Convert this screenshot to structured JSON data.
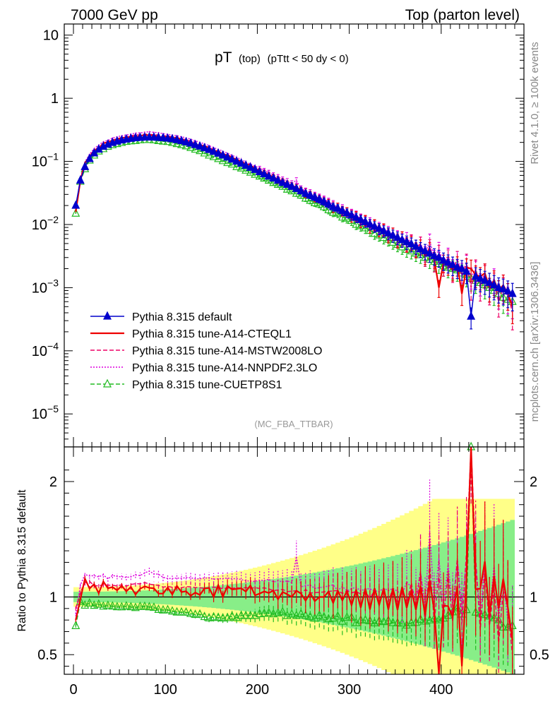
{
  "header": {
    "left": "7000 GeV pp",
    "right": "Top (parton level)"
  },
  "side_labels": {
    "rivet": "Rivet 4.1.0, ≥ 100k events",
    "mcplots": "mcplots.cern.ch [arXiv:1306.3436]"
  },
  "chart_data": {
    "type": "line",
    "title_main": "pT",
    "title_sub1": "(top)",
    "title_sub2": "(pTtt < 50 dy < 0)",
    "watermark": "(MC_FBA_TTBAR)",
    "xlabel": "",
    "xlim": [
      -10,
      490
    ],
    "x_ticks": [
      0,
      100,
      200,
      300,
      400
    ],
    "x_tick_labels": [
      "0",
      "100",
      "200",
      "300",
      "400"
    ],
    "main_panel": {
      "yscale": "log",
      "ylim": [
        3e-06,
        15
      ],
      "y_ticks": [
        {
          "value": 10,
          "base": "10",
          "exp": ""
        },
        {
          "value": 1,
          "base": "1",
          "exp": ""
        },
        {
          "value": 0.1,
          "base": "10",
          "exp": "−1"
        },
        {
          "value": 0.01,
          "base": "10",
          "exp": "−2"
        },
        {
          "value": 0.001,
          "base": "10",
          "exp": "−3"
        },
        {
          "value": 0.0001,
          "base": "10",
          "exp": "−4"
        },
        {
          "value": 1e-05,
          "base": "10",
          "exp": "−5"
        }
      ]
    },
    "ratio_panel": {
      "ylabel": "Ratio to Pythia 8.315 default",
      "ylim": [
        0.33,
        2.3
      ],
      "y_ticks": [
        0.5,
        1,
        2
      ],
      "y_tick_labels": [
        "0.5",
        "1",
        "2"
      ]
    },
    "x": [
      2.5,
      7.5,
      12.5,
      17.5,
      22.5,
      27.5,
      32.5,
      37.5,
      42.5,
      47.5,
      52.5,
      57.5,
      62.5,
      67.5,
      72.5,
      77.5,
      82.5,
      87.5,
      92.5,
      97.5,
      102.5,
      107.5,
      112.5,
      117.5,
      122.5,
      127.5,
      132.5,
      137.5,
      142.5,
      147.5,
      152.5,
      157.5,
      162.5,
      167.5,
      172.5,
      177.5,
      182.5,
      187.5,
      192.5,
      197.5,
      202.5,
      207.5,
      212.5,
      217.5,
      222.5,
      227.5,
      232.5,
      237.5,
      242.5,
      247.5,
      252.5,
      257.5,
      262.5,
      267.5,
      272.5,
      277.5,
      282.5,
      287.5,
      292.5,
      297.5,
      302.5,
      307.5,
      312.5,
      317.5,
      322.5,
      327.5,
      332.5,
      337.5,
      342.5,
      347.5,
      352.5,
      357.5,
      362.5,
      367.5,
      372.5,
      377.5,
      382.5,
      387.5,
      392.5,
      397.5,
      402.5,
      407.5,
      412.5,
      417.5,
      422.5,
      427.5,
      432.5,
      437.5,
      442.5,
      447.5,
      452.5,
      457.5,
      462.5,
      467.5,
      472.5,
      477.5
    ],
    "series": [
      {
        "name": "Pythia 8.315 default",
        "color": "#0000cc",
        "style": "solid",
        "marker": "triangle-filled",
        "values": [
          0.02,
          0.05,
          0.082,
          0.11,
          0.135,
          0.155,
          0.172,
          0.186,
          0.198,
          0.208,
          0.217,
          0.224,
          0.23,
          0.235,
          0.238,
          0.24,
          0.241,
          0.24,
          0.238,
          0.235,
          0.231,
          0.226,
          0.219,
          0.211,
          0.202,
          0.193,
          0.183,
          0.173,
          0.163,
          0.153,
          0.143,
          0.134,
          0.125,
          0.116,
          0.108,
          0.1,
          0.093,
          0.086,
          0.08,
          0.074,
          0.068,
          0.063,
          0.058,
          0.054,
          0.05,
          0.046,
          0.043,
          0.04,
          0.037,
          0.034,
          0.031,
          0.029,
          0.027,
          0.025,
          0.023,
          0.021,
          0.019,
          0.018,
          0.0165,
          0.0152,
          0.014,
          0.0129,
          0.0119,
          0.011,
          0.0101,
          0.0093,
          0.0086,
          0.0079,
          0.0073,
          0.0067,
          0.0062,
          0.0057,
          0.0053,
          0.0049,
          0.0045,
          0.0041,
          0.0038,
          0.0035,
          0.0032,
          0.003,
          0.0027,
          0.0025,
          0.0023,
          0.0021,
          0.002,
          0.0018,
          0.00035,
          0.0015,
          0.0014,
          0.0013,
          0.0012,
          0.0011,
          0.001,
          0.00095,
          0.00088,
          0.0008
        ]
      },
      {
        "name": "Pythia 8.315 tune-A14-CTEQL1",
        "color": "#ee0000",
        "style": "solid",
        "marker": "none",
        "values": [
          0.016,
          0.049,
          0.095,
          0.118,
          0.15,
          0.16,
          0.195,
          0.2,
          0.215,
          0.22,
          0.238,
          0.235,
          0.25,
          0.24,
          0.255,
          0.262,
          0.26,
          0.258,
          0.245,
          0.242,
          0.25,
          0.231,
          0.24,
          0.22,
          0.212,
          0.195,
          0.19,
          0.176,
          0.175,
          0.165,
          0.143,
          0.148,
          0.125,
          0.127,
          0.115,
          0.107,
          0.1,
          0.09,
          0.088,
          0.075,
          0.07,
          0.066,
          0.06,
          0.057,
          0.049,
          0.048,
          0.044,
          0.04,
          0.039,
          0.035,
          0.03,
          0.03,
          0.026,
          0.025,
          0.023,
          0.022,
          0.018,
          0.019,
          0.016,
          0.016,
          0.013,
          0.0137,
          0.0108,
          0.0118,
          0.009,
          0.01,
          0.008,
          0.0085,
          0.0065,
          0.0072,
          0.0055,
          0.0062,
          0.0048,
          0.0052,
          0.004,
          0.0045,
          0.0032,
          0.004,
          0.0028,
          0.001,
          0.0025,
          0.0023,
          0.0019,
          0.0023,
          0.0008,
          0.0021,
          0.002,
          0.0016,
          0.0015,
          0.0017,
          0.001,
          0.0013,
          0.0009,
          0.0011,
          0.0008,
          0.0005
        ]
      },
      {
        "name": "Pythia 8.315 tune-A14-MSTW2008LO",
        "color": "#ee0066",
        "style": "dashed",
        "marker": "none",
        "values": [
          0.018,
          0.052,
          0.092,
          0.125,
          0.148,
          0.17,
          0.19,
          0.205,
          0.218,
          0.228,
          0.24,
          0.245,
          0.255,
          0.262,
          0.265,
          0.27,
          0.268,
          0.265,
          0.262,
          0.255,
          0.252,
          0.245,
          0.238,
          0.228,
          0.22,
          0.21,
          0.198,
          0.187,
          0.175,
          0.165,
          0.155,
          0.145,
          0.134,
          0.125,
          0.116,
          0.108,
          0.1,
          0.093,
          0.086,
          0.08,
          0.073,
          0.068,
          0.062,
          0.057,
          0.053,
          0.049,
          0.045,
          0.042,
          0.039,
          0.035,
          0.033,
          0.03,
          0.028,
          0.026,
          0.024,
          0.022,
          0.02,
          0.019,
          0.017,
          0.016,
          0.0145,
          0.0135,
          0.0122,
          0.0115,
          0.01,
          0.0098,
          0.0085,
          0.0082,
          0.007,
          0.0072,
          0.0058,
          0.0062,
          0.005,
          0.0055,
          0.0041,
          0.005,
          0.003,
          0.0045,
          0.0025,
          0.0036,
          0.0022,
          0.003,
          0.0018,
          0.0028,
          0.0015,
          0.0025,
          0.001,
          0.002,
          0.001,
          0.0016,
          0.0009,
          0.0012,
          0.0006,
          0.001,
          0.0008,
          0.0004
        ]
      },
      {
        "name": "Pythia 8.315 tune-A14-NNPDF2.3LO",
        "color": "#dd00dd",
        "style": "dotted",
        "marker": "none",
        "values": [
          0.017,
          0.055,
          0.098,
          0.13,
          0.16,
          0.182,
          0.205,
          0.215,
          0.235,
          0.245,
          0.255,
          0.262,
          0.27,
          0.28,
          0.282,
          0.29,
          0.295,
          0.288,
          0.285,
          0.275,
          0.268,
          0.262,
          0.255,
          0.245,
          0.236,
          0.225,
          0.212,
          0.2,
          0.19,
          0.178,
          0.165,
          0.155,
          0.145,
          0.135,
          0.125,
          0.116,
          0.107,
          0.098,
          0.091,
          0.084,
          0.078,
          0.072,
          0.067,
          0.061,
          0.057,
          0.052,
          0.049,
          0.045,
          0.05,
          0.037,
          0.034,
          0.032,
          0.029,
          0.027,
          0.025,
          0.023,
          0.021,
          0.019,
          0.018,
          0.016,
          0.015,
          0.014,
          0.0125,
          0.0118,
          0.0108,
          0.0098,
          0.009,
          0.0085,
          0.0077,
          0.0072,
          0.0065,
          0.0058,
          0.006,
          0.0053,
          0.0045,
          0.005,
          0.0035,
          0.0055,
          0.003,
          0.004,
          0.0025,
          0.0032,
          0.0021,
          0.0028,
          0.0018,
          0.0024,
          0.0015,
          0.0019,
          0.0012,
          0.0017,
          0.001,
          0.0014,
          0.0008,
          0.0011,
          0.0007,
          0.0006
        ]
      },
      {
        "name": "Pythia 8.315 tune-CUETP8S1",
        "color": "#22bb22",
        "style": "dashed",
        "marker": "triangle-open",
        "values": [
          0.015,
          0.048,
          0.076,
          0.104,
          0.125,
          0.145,
          0.158,
          0.172,
          0.182,
          0.19,
          0.198,
          0.206,
          0.21,
          0.213,
          0.218,
          0.22,
          0.22,
          0.218,
          0.212,
          0.208,
          0.205,
          0.198,
          0.19,
          0.183,
          0.175,
          0.165,
          0.155,
          0.147,
          0.135,
          0.125,
          0.118,
          0.11,
          0.102,
          0.095,
          0.09,
          0.082,
          0.078,
          0.072,
          0.067,
          0.062,
          0.058,
          0.054,
          0.05,
          0.046,
          0.043,
          0.04,
          0.036,
          0.034,
          0.031,
          0.029,
          0.026,
          0.024,
          0.022,
          0.021,
          0.019,
          0.017,
          0.0155,
          0.015,
          0.013,
          0.0125,
          0.0115,
          0.01,
          0.0095,
          0.0088,
          0.008,
          0.0072,
          0.0068,
          0.0062,
          0.0058,
          0.0052,
          0.0048,
          0.0044,
          0.004,
          0.0038,
          0.0035,
          0.0033,
          0.003,
          0.0028,
          0.0026,
          0.0024,
          0.0022,
          0.0021,
          0.002,
          0.0019,
          0.0017,
          0.0016,
          0.0014,
          0.0013,
          0.0012,
          0.0011,
          0.001,
          0.0009,
          0.0008,
          0.0007,
          0.00065,
          0.0006
        ]
      }
    ]
  }
}
